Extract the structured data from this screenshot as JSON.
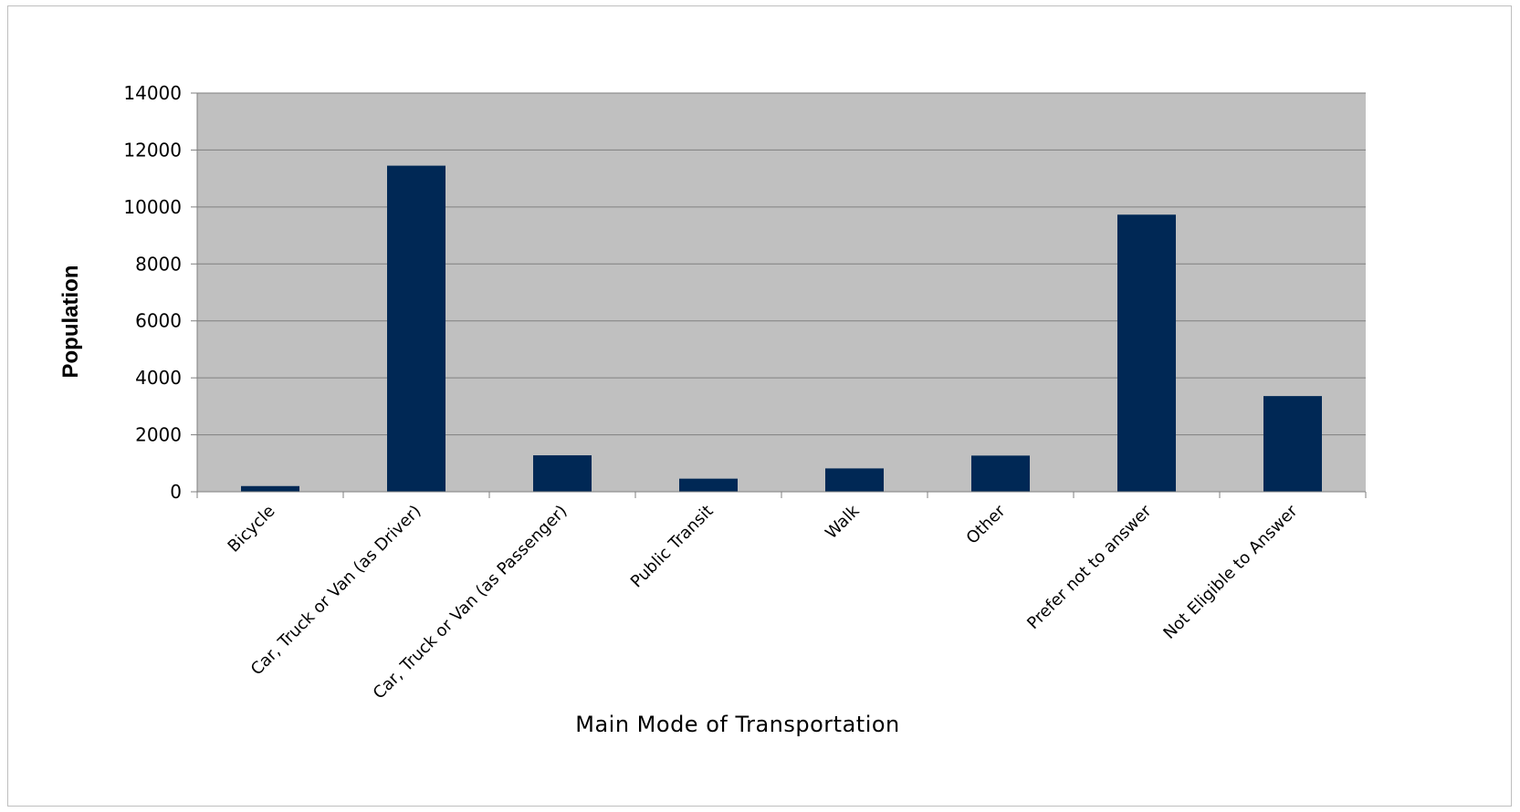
{
  "chart_data": {
    "type": "bar",
    "title": "",
    "xlabel": "Main Mode of Transportation",
    "ylabel": "Population",
    "ylim": [
      0,
      14000
    ],
    "yticks": [
      0,
      2000,
      4000,
      6000,
      8000,
      10000,
      12000,
      14000
    ],
    "grid": true,
    "legend": "none",
    "categories": [
      "Bicycle",
      "Car, Truck or Van (as Driver)",
      "Car, Truck or Van (as Passenger)",
      "Public Transit",
      "Walk",
      "Other",
      "Prefer not to answer",
      "Not Eligible to Answer"
    ],
    "series": [
      {
        "values": [
          200,
          11450,
          1280,
          460,
          820,
          1270,
          9730,
          3360
        ]
      }
    ],
    "colors": {
      "bar": "#002855",
      "plot_background": "#c0c0c0",
      "gridline": "#7f7f7f",
      "axis": "#7f7f7f"
    }
  }
}
